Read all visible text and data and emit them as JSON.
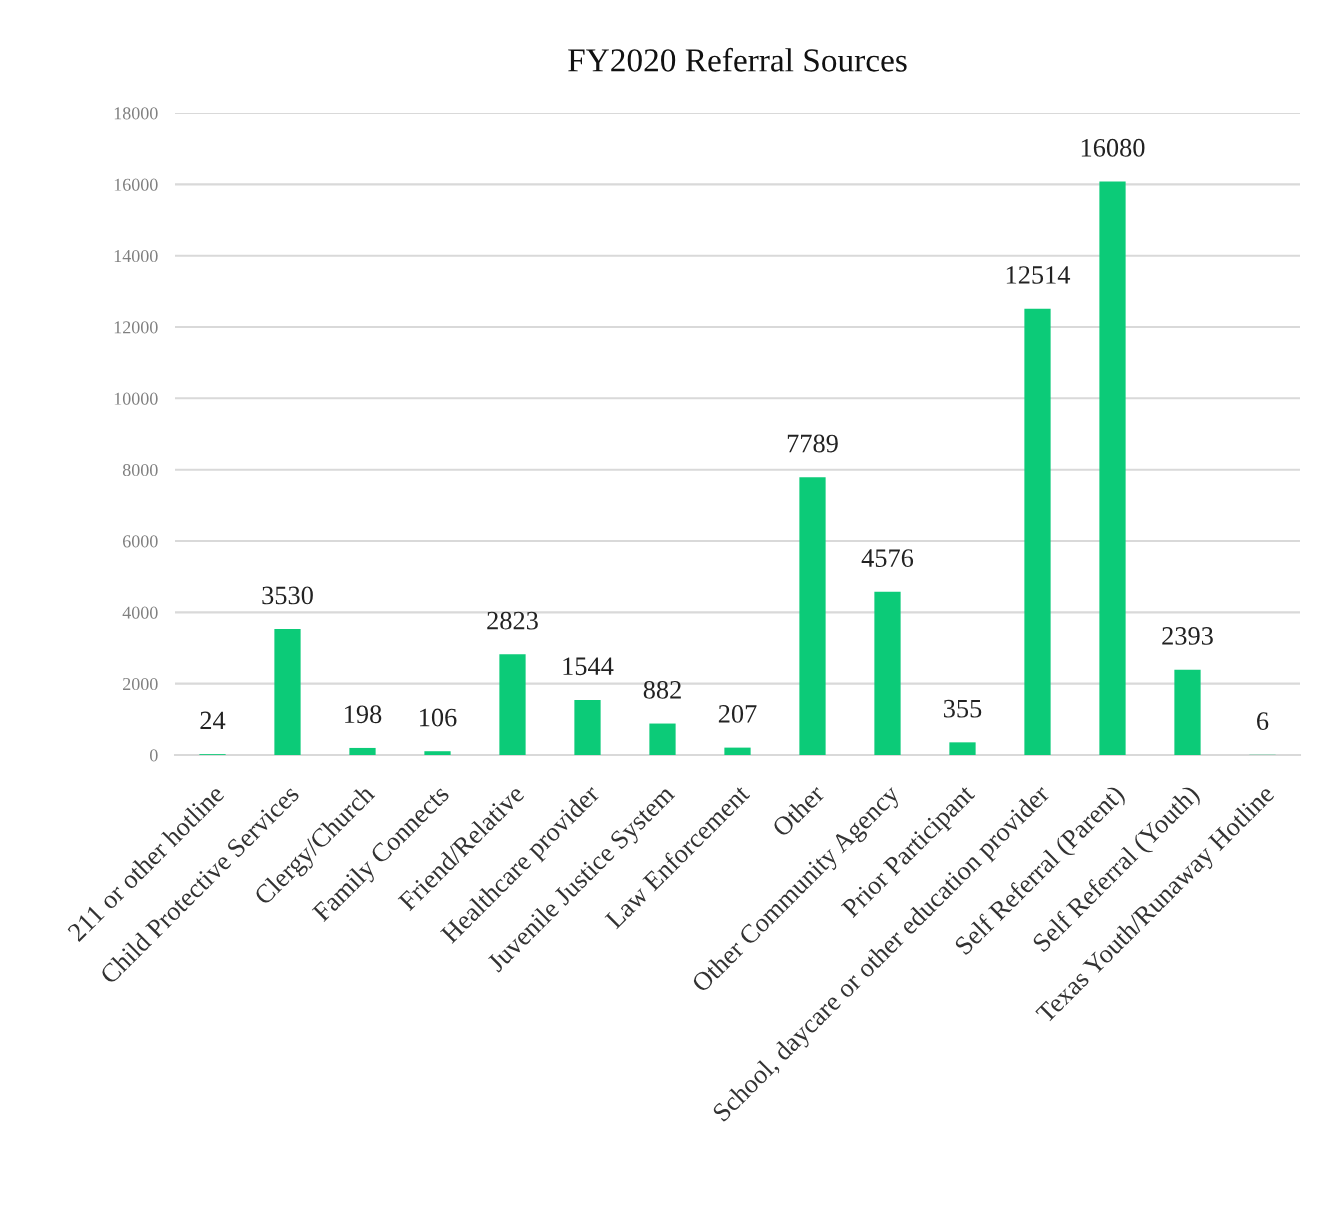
{
  "chart_data": {
    "type": "bar",
    "title": "FY2020 Referral Sources",
    "categories": [
      "211 or other hotline",
      "Child Protective Services",
      "Clergy/Church",
      "Family Connects",
      "Friend/Relative",
      "Healthcare provider",
      "Juvenile Justice System",
      "Law Enforcement",
      "Other",
      "Other Community Agency",
      "Prior Participant",
      "School, daycare or other education provider",
      "Self Referral (Parent)",
      "Self Referral (Youth)",
      "Texas Youth/Runaway Hotline"
    ],
    "values": [
      24,
      3530,
      198,
      106,
      2823,
      1544,
      882,
      207,
      7789,
      4576,
      355,
      12514,
      16080,
      2393,
      6
    ],
    "color": "#0ccb78",
    "ylim": [
      0,
      18000
    ],
    "yticks": [
      0,
      2000,
      4000,
      6000,
      8000,
      10000,
      12000,
      14000,
      16000,
      18000
    ],
    "grid": "y",
    "data_labels": true
  }
}
